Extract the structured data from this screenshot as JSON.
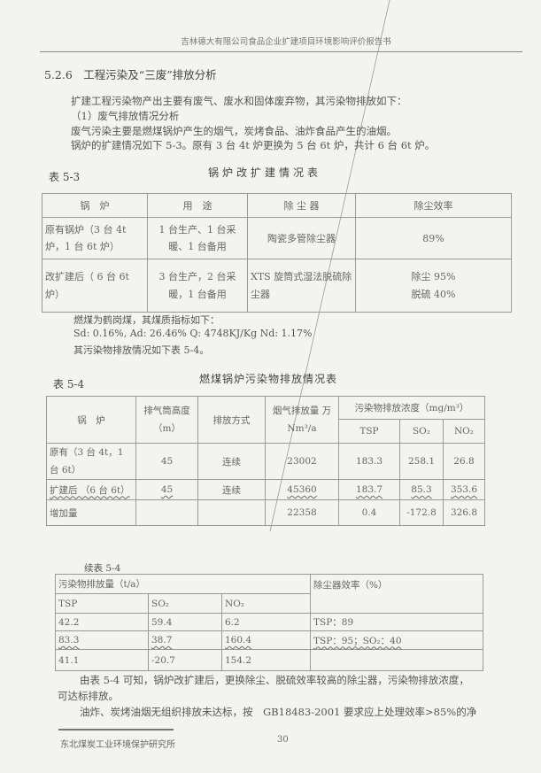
{
  "header": "吉林德大有限公司食品企业扩建项目环境影响评价报告书",
  "section_heading": "5.2.6　工程污染及“三废”排放分析",
  "intro_lines": [
    "扩建工程污染物产出主要有废气、废水和固体废弃物，其污染物排放如下：",
    "（1）废气排放情况分析",
    "废气污染主要是燃煤锅炉产生的烟气，炭烤食品、油炸食品产生的油烟。",
    "锅炉的扩建情况如下 5-3。原有 3 台 4t 炉更换为 5 台 6t 炉，共计 6 台 6t 炉。"
  ],
  "table53": {
    "label": "表 5-3",
    "title": "锅炉改扩建情况表",
    "headers": [
      "锅　炉",
      "用　途",
      "除 尘 器",
      "除尘效率"
    ],
    "rows": [
      [
        "原有锅炉（3 台 4t 炉，1 台 6t 炉）",
        "1 台生产、1 台采暖、1 台备用",
        "陶瓷多管除尘器",
        "89%"
      ],
      [
        "改扩建后（ 6 台 6t 炉）",
        "3 台生产，2 台采暖，1 台备用",
        "XTS 旋筒式湿法脱硫除尘器",
        "除尘 95%|脱硫 40%"
      ]
    ]
  },
  "coal_lines": [
    "燃煤为鹤岗煤，其煤质指标如下：",
    "Sd: 0.16%,  Ad: 26.46%  Q:  4748KJ/Kg    Nd:  1.17%",
    "其污染物排放情况如下表 5-4。"
  ],
  "table54": {
    "label": "表 5-4",
    "title": "燃煤锅炉污染物排放情况表",
    "headers": {
      "boiler": "锅　炉",
      "stack": "排气筒高度（m）",
      "mode": "排放方式",
      "flue": "烟气排放量 万 Nm³/a",
      "conc": "污染物排放浓度（mg/m³）",
      "tsp": "TSP",
      "so2": "SO₂",
      "no2": "NO₂"
    },
    "rows": [
      [
        "原有（3 台 4t，1 台 6t）",
        "45",
        "连续",
        "23002",
        "183.3",
        "258.1",
        "26.8"
      ],
      [
        "扩建后 （6 台 6t）",
        "45",
        "连续",
        "45360",
        "183.7",
        "85.3",
        "353.6"
      ],
      [
        "增加量",
        "",
        "",
        "22358",
        "0.4",
        "-172.8",
        "326.8"
      ]
    ]
  },
  "table54c": {
    "label": "续表 5-4",
    "headers": {
      "emission": "污染物排放量（t/a）",
      "eff": "除尘器效率（%）",
      "tsp": "TSP",
      "so2": "SO₂",
      "no2": "NO₂"
    },
    "rows": [
      [
        "42.2",
        "59.4",
        "6.2",
        "TSP：89"
      ],
      [
        "83.3",
        "38.7",
        "160.4",
        "TSP：95；SO₂：40"
      ],
      [
        "41.1",
        "-20.7",
        "154.2",
        ""
      ]
    ]
  },
  "conclusion_lines": [
    "由表 5-4 可知，锅炉改扩建后，更换除尘、脱硫效率较高的除尘器，污染物排放浓度，",
    "可达标排放。",
    "油炸、炭烤油烟无组织排放未达标，按　GB18483-2001 要求应上处理效率>85%的净"
  ],
  "footer": {
    "org": "东北煤炭工业环境保护研究所",
    "page": "30"
  }
}
